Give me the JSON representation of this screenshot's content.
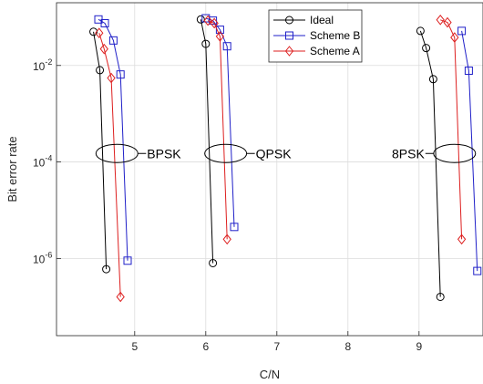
{
  "chart_data": {
    "type": "line",
    "xlabel": "C/N",
    "ylabel": "Bit error rate",
    "xlim": [
      3.9,
      9.9
    ],
    "ylim_log10": [
      -7.6,
      -0.7
    ],
    "y_scale": "log",
    "x_ticks": [
      5,
      6,
      7,
      8,
      9
    ],
    "x_tick_labels": [
      "5",
      "6",
      "7",
      "8",
      "9"
    ],
    "y_ticks_exp": [
      -2,
      -4,
      -6
    ],
    "y_tick_labels": [
      {
        "base": "10",
        "exp": "-2"
      },
      {
        "base": "10",
        "exp": "-4"
      },
      {
        "base": "10",
        "exp": "-6"
      }
    ],
    "grid": true,
    "legend_position": "top-right",
    "series": [
      {
        "name": "Ideal",
        "color": "#000000",
        "marker": "circle",
        "groups": [
          [
            [
              4.42,
              0.05
            ],
            [
              4.51,
              0.008
            ],
            [
              4.6,
              6e-07
            ]
          ],
          [
            [
              5.93,
              0.09
            ],
            [
              6.0,
              0.028
            ],
            [
              6.1,
              8e-07
            ]
          ],
          [
            [
              9.02,
              0.052
            ],
            [
              9.1,
              0.023
            ],
            [
              9.2,
              0.0052
            ],
            [
              9.3,
              1.6e-07
            ]
          ]
        ]
      },
      {
        "name": "Scheme B",
        "color": "#1f1fc8",
        "marker": "square",
        "groups": [
          [
            [
              4.49,
              0.09
            ],
            [
              4.58,
              0.075
            ],
            [
              4.7,
              0.033
            ],
            [
              4.8,
              0.0065
            ],
            [
              4.9,
              9e-07
            ]
          ],
          [
            [
              6.0,
              0.095
            ],
            [
              6.1,
              0.085
            ],
            [
              6.2,
              0.055
            ],
            [
              6.3,
              0.025
            ],
            [
              6.4,
              4.5e-06
            ]
          ],
          [
            [
              9.6,
              0.052
            ],
            [
              9.7,
              0.0078
            ],
            [
              9.82,
              5.5e-07
            ]
          ]
        ]
      },
      {
        "name": "Scheme A",
        "color": "#dd1f1f",
        "marker": "diamond",
        "groups": [
          [
            [
              4.5,
              0.047
            ],
            [
              4.57,
              0.022
            ],
            [
              4.67,
              0.0055
            ],
            [
              4.8,
              1.6e-07
            ]
          ],
          [
            [
              6.03,
              0.085
            ],
            [
              6.12,
              0.075
            ],
            [
              6.2,
              0.04
            ],
            [
              6.3,
              2.5e-06
            ]
          ],
          [
            [
              9.3,
              0.088
            ],
            [
              9.4,
              0.078
            ],
            [
              9.5,
              0.038
            ],
            [
              9.6,
              2.5e-06
            ]
          ]
        ]
      }
    ],
    "annotations": [
      {
        "text": "BPSK",
        "ellipse_center": [
          4.75,
          0.00015
        ],
        "text_side": "right"
      },
      {
        "text": "QPSK",
        "ellipse_center": [
          6.28,
          0.00015
        ],
        "text_side": "right"
      },
      {
        "text": "8PSK",
        "ellipse_center": [
          9.5,
          0.00015
        ],
        "text_side": "left"
      }
    ]
  }
}
